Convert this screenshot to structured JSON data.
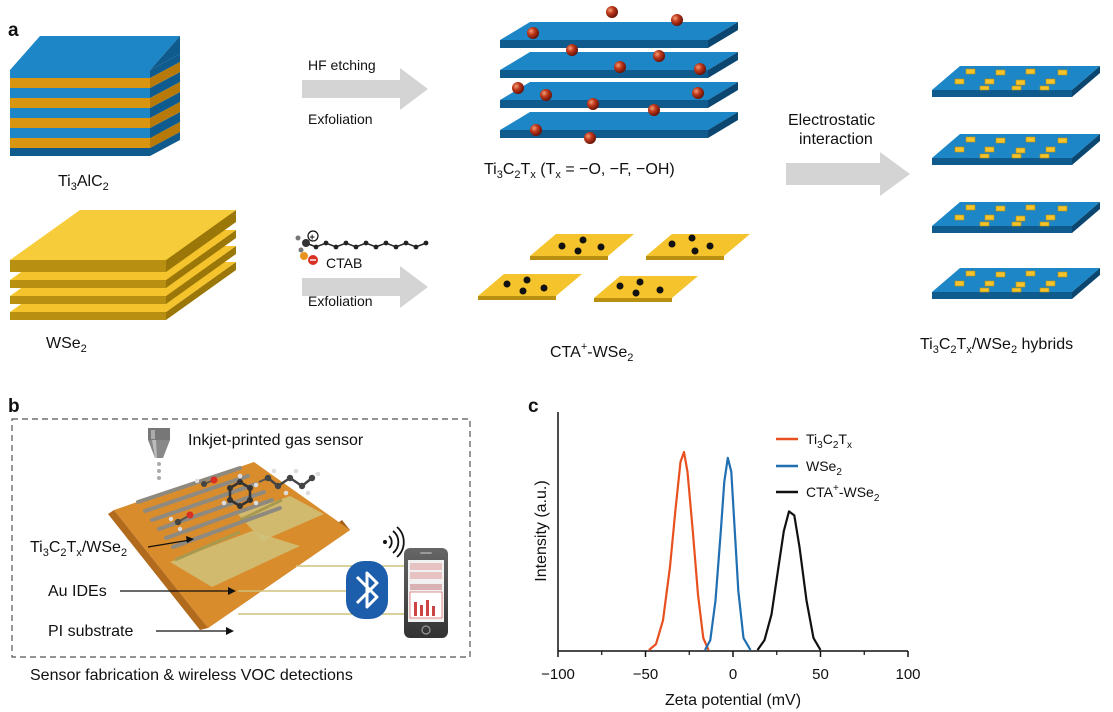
{
  "panel_a": {
    "letter": "a",
    "ti3alc2_label": {
      "base": "Ti",
      "s1": "3",
      "mid": "AlC",
      "s2": "2"
    },
    "arrow1_top": "HF etching",
    "arrow1_bottom": "Exfoliation",
    "mxene_label": {
      "a": "Ti",
      "s1": "3",
      "b": "C",
      "s2": "2",
      "c": "T",
      "s3": "x",
      "d": " (T",
      "s4": "x",
      "e": " = −O, −F, −OH)"
    },
    "wse2_label": {
      "base": "WSe",
      "s1": "2"
    },
    "ctab_label": "CTAB",
    "arrow2_bottom": "Exfoliation",
    "cta_wse2_label": {
      "a": "CTA",
      "sup": "+",
      "b": "-WSe",
      "s1": "2"
    },
    "electrostatic_line1": "Electrostatic",
    "electrostatic_line2": "interaction",
    "hybrid_label": {
      "a": "Ti",
      "s1": "3",
      "b": "C",
      "s2": "2",
      "c": "T",
      "s3": "x",
      "d": "/WSe",
      "s4": "2",
      "e": " hybrids"
    }
  },
  "panel_b": {
    "letter": "b",
    "inkjet_label": "Inkjet-printed gas sensor",
    "film_label": {
      "a": "Ti",
      "s1": "3",
      "b": "C",
      "s2": "2",
      "c": "T",
      "s3": "x",
      "d": "/WSe",
      "s4": "2"
    },
    "au_label": "Au IDEs",
    "pi_label": "PI substrate",
    "caption": "Sensor fabrication & wireless VOC detections"
  },
  "panel_c": {
    "letter": "c",
    "chart_data": {
      "type": "line",
      "xlabel": "Zeta potential (mV)",
      "ylabel": "Intensity (a.u.)",
      "xlim": [
        -100,
        100
      ],
      "xticks": [
        "−100",
        "−50",
        "0",
        "50",
        "100"
      ],
      "legend_position": "top-right",
      "series": [
        {
          "name": "Ti3C2Tx",
          "color": "#e8511f",
          "x": [
            -48,
            -44,
            -40,
            -36,
            -33,
            -30,
            -28,
            -26,
            -23,
            -20,
            -17,
            -14
          ],
          "y": [
            0,
            0.03,
            0.15,
            0.42,
            0.7,
            0.95,
            1.0,
            0.9,
            0.6,
            0.28,
            0.06,
            0
          ]
        },
        {
          "name": "WSe2",
          "color": "#1f6fb2",
          "x": [
            -16,
            -13,
            -10,
            -7,
            -5,
            -3,
            -1,
            1,
            3,
            6,
            10
          ],
          "y": [
            0,
            0.05,
            0.25,
            0.6,
            0.85,
            0.97,
            0.9,
            0.6,
            0.3,
            0.06,
            0
          ]
        },
        {
          "name": "CTA+-WSe2",
          "color": "#111111",
          "x": [
            14,
            18,
            22,
            26,
            29,
            32,
            35,
            38,
            42,
            46,
            50
          ],
          "y": [
            0,
            0.05,
            0.18,
            0.42,
            0.6,
            0.7,
            0.68,
            0.52,
            0.25,
            0.06,
            0
          ]
        }
      ]
    },
    "legend": [
      {
        "a": "Ti",
        "s1": "3",
        "b": "C",
        "s2": "2",
        "c": "T",
        "s3": "x"
      },
      {
        "a": "WSe",
        "s1": "2"
      },
      {
        "a": "CTA",
        "sup": "+",
        "b": "-WSe",
        "s1": "2"
      }
    ],
    "colors": {
      "ti3c2tx": "#e8511f",
      "wse2": "#1f6fb2",
      "cta": "#111111"
    }
  },
  "colors": {
    "mxene_blue": "#1d86c6",
    "mxene_dark": "#0f5b8e",
    "wse2_yellow": "#f5c42c",
    "max_orange": "#d9950f",
    "arrow_gray": "#d4d4d4",
    "pi_orange": "#d98c2b",
    "bluetooth_blue": "#1c5eab"
  }
}
